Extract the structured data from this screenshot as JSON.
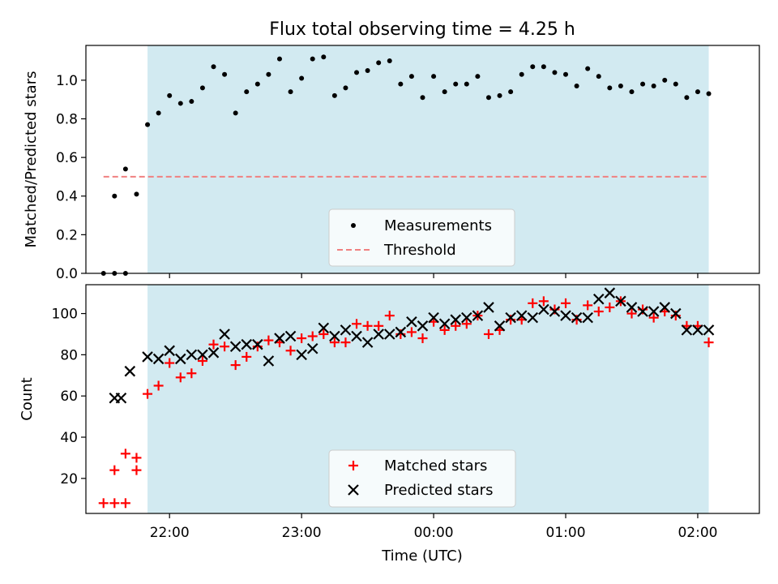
{
  "chart_data": [
    {
      "type": "scatter",
      "title": "Flux total observing time = 4.25 h",
      "ylabel": "Matched/Predicted stars",
      "ylim": [
        0,
        1.18
      ],
      "xlim": [
        "21:22",
        "02:28"
      ],
      "yticks": [
        "0.0",
        "0.2",
        "0.4",
        "0.6",
        "0.8",
        "1.0"
      ],
      "observing_window": {
        "start": "21:50",
        "end": "02:05",
        "color": "#add8e6"
      },
      "threshold": {
        "name": "Threshold",
        "value": 0.5,
        "start": "21:30",
        "end": "02:05",
        "color": "#f08080"
      },
      "legend": {
        "position": "lower-center",
        "entries": [
          "Measurements",
          "Threshold"
        ]
      },
      "series": [
        {
          "name": "Measurements",
          "marker": "dot",
          "color": "#000000",
          "x": [
            "21:30",
            "21:35",
            "21:40",
            "21:35",
            "21:40",
            "21:45",
            "21:50",
            "21:55",
            "22:00",
            "22:05",
            "22:10",
            "22:15",
            "22:20",
            "22:25",
            "22:30",
            "22:35",
            "22:40",
            "22:45",
            "22:50",
            "22:55",
            "23:00",
            "23:05",
            "23:10",
            "23:15",
            "23:20",
            "23:25",
            "23:30",
            "23:35",
            "23:40",
            "23:45",
            "23:50",
            "23:55",
            "00:00",
            "00:05",
            "00:10",
            "00:15",
            "00:20",
            "00:25",
            "00:30",
            "00:35",
            "00:40",
            "00:45",
            "00:50",
            "00:55",
            "01:00",
            "01:05",
            "01:10",
            "01:15",
            "01:20",
            "01:25",
            "01:30",
            "01:35",
            "01:40",
            "01:45",
            "01:50",
            "01:55",
            "02:00",
            "02:05"
          ],
          "y": [
            0.0,
            0.0,
            0.0,
            0.4,
            0.54,
            0.41,
            0.77,
            0.83,
            0.92,
            0.88,
            0.89,
            0.96,
            1.07,
            1.03,
            0.83,
            0.94,
            0.98,
            1.03,
            1.11,
            0.94,
            1.01,
            1.11,
            1.12,
            0.92,
            0.96,
            1.04,
            1.05,
            1.09,
            1.1,
            0.98,
            1.02,
            0.91,
            1.02,
            0.94,
            0.98,
            0.98,
            1.02,
            0.91,
            0.92,
            0.94,
            1.03,
            1.07,
            1.07,
            1.04,
            1.03,
            0.97,
            1.06,
            1.02,
            0.96,
            0.97,
            0.94,
            0.98,
            0.97,
            1.0,
            0.98,
            0.91,
            0.94,
            0.93
          ]
        }
      ]
    },
    {
      "type": "scatter",
      "xlabel": "Time (UTC)",
      "ylabel": "Count",
      "ylim": [
        3,
        114
      ],
      "xlim": [
        "21:22",
        "02:28"
      ],
      "xticks": [
        "22:00",
        "23:00",
        "00:00",
        "01:00",
        "02:00"
      ],
      "yticks": [
        "20",
        "40",
        "60",
        "80",
        "100"
      ],
      "observing_window": {
        "start": "21:50",
        "end": "02:05",
        "color": "#add8e6"
      },
      "legend": {
        "position": "lower-center",
        "entries": [
          "Matched stars",
          "Predicted stars"
        ]
      },
      "series": [
        {
          "name": "Matched stars",
          "marker": "plus",
          "color": "#ff0000",
          "x": [
            "21:30",
            "21:35",
            "21:40",
            "21:45",
            "21:50",
            "21:55",
            "22:00",
            "22:05",
            "22:10",
            "22:15",
            "22:20",
            "22:25",
            "22:30",
            "22:35",
            "22:40",
            "22:45",
            "22:50",
            "22:55",
            "23:00",
            "23:05",
            "23:10",
            "23:15",
            "23:20",
            "23:25",
            "23:30",
            "23:35",
            "23:40",
            "23:45",
            "23:50",
            "23:55",
            "00:00",
            "00:05",
            "00:10",
            "00:15",
            "00:20",
            "00:25",
            "00:30",
            "00:35",
            "00:40",
            "00:45",
            "00:50",
            "00:55",
            "01:00",
            "01:05",
            "01:10",
            "01:15",
            "01:20",
            "01:25",
            "01:30",
            "01:35",
            "01:40",
            "01:45",
            "01:50",
            "01:55",
            "02:00",
            "02:05",
            "21:45",
            "21:40",
            "21:35"
          ],
          "y": [
            8,
            8,
            8,
            24,
            61,
            65,
            76,
            69,
            71,
            77,
            85,
            84,
            75,
            79,
            84,
            87,
            86,
            82,
            88,
            89,
            90,
            86,
            86,
            95,
            94,
            94,
            99,
            90,
            91,
            88,
            96,
            92,
            94,
            95,
            99,
            90,
            92,
            97,
            97,
            105,
            106,
            102,
            105,
            97,
            104,
            101,
            103,
            106,
            100,
            102,
            98,
            101,
            99,
            94,
            94,
            86,
            30,
            32,
            24
          ]
        },
        {
          "name": "Predicted stars",
          "marker": "x",
          "color": "#000000",
          "x": [
            "21:35",
            "21:38",
            "21:42",
            "21:50",
            "21:55",
            "22:00",
            "22:05",
            "22:10",
            "22:15",
            "22:20",
            "22:25",
            "22:30",
            "22:35",
            "22:40",
            "22:45",
            "22:50",
            "22:55",
            "23:00",
            "23:05",
            "23:10",
            "23:15",
            "23:20",
            "23:25",
            "23:30",
            "23:35",
            "23:40",
            "23:45",
            "23:50",
            "23:55",
            "00:00",
            "00:05",
            "00:10",
            "00:15",
            "00:20",
            "00:25",
            "00:30",
            "00:35",
            "00:40",
            "00:45",
            "00:50",
            "00:55",
            "01:00",
            "01:05",
            "01:10",
            "01:15",
            "01:20",
            "01:25",
            "01:30",
            "01:35",
            "01:40",
            "01:45",
            "01:50",
            "01:55",
            "02:00",
            "02:05"
          ],
          "y": [
            59,
            59,
            72,
            79,
            78,
            82,
            78,
            80,
            80,
            81,
            90,
            84,
            85,
            85,
            77,
            88,
            89,
            80,
            83,
            93,
            89,
            92,
            89,
            86,
            90,
            90,
            91,
            96,
            94,
            98,
            95,
            97,
            98,
            99,
            103,
            94,
            98,
            99,
            98,
            102,
            101,
            99,
            98,
            98,
            107,
            110,
            106,
            103,
            101,
            101,
            103,
            100,
            92,
            92,
            92
          ]
        }
      ]
    }
  ]
}
